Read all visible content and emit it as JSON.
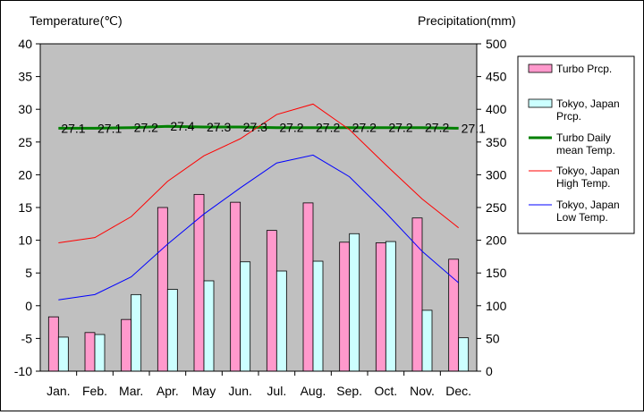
{
  "chart_data": {
    "type": "bar",
    "categories": [
      "Jan.",
      "Feb.",
      "Mar.",
      "Apr.",
      "May",
      "Jun.",
      "Jul.",
      "Aug.",
      "Sep.",
      "Oct.",
      "Nov.",
      "Dec."
    ],
    "y_left": {
      "label": "Temperature(℃)",
      "ylim": [
        -10,
        40
      ],
      "ticks": [
        "-10",
        "-5",
        "0",
        "5",
        "10",
        "15",
        "20",
        "25",
        "30",
        "35",
        "40"
      ]
    },
    "y_right": {
      "label": "Precipitation(mm)",
      "ylim": [
        0,
        500
      ],
      "ticks": [
        "0",
        "50",
        "100",
        "150",
        "200",
        "250",
        "300",
        "350",
        "400",
        "450",
        "500"
      ]
    },
    "series": [
      {
        "name": "Turbo Prcp.",
        "type": "bar",
        "axis": "right",
        "color": "#ff99cc",
        "values": [
          83,
          59,
          79,
          250,
          270,
          258,
          215,
          257,
          197,
          196,
          234,
          171
        ]
      },
      {
        "name": "Tokyo, Japan Prcp.",
        "type": "bar",
        "axis": "right",
        "color": "#ccffff",
        "values": [
          52,
          56,
          117,
          125,
          138,
          167,
          153,
          168,
          210,
          198,
          93,
          51
        ]
      },
      {
        "name": "Turbo Daily mean Temp.",
        "type": "line",
        "axis": "left",
        "color": "#008000",
        "values": [
          27.1,
          27.1,
          27.2,
          27.4,
          27.3,
          27.3,
          27.2,
          27.2,
          27.2,
          27.2,
          27.2,
          27.1
        ],
        "labels": [
          "27.1",
          "27.1",
          "27.2",
          "27.4",
          "27.3",
          "27.3",
          "27.2",
          "27.2",
          "27.2",
          "27.2",
          "27.2",
          "27.1"
        ]
      },
      {
        "name": "Tokyo, Japan High Temp.",
        "type": "line",
        "axis": "left",
        "color": "#ff0000",
        "values": [
          9.6,
          10.4,
          13.6,
          19.0,
          22.9,
          25.5,
          29.2,
          30.8,
          26.9,
          21.5,
          16.3,
          11.9
        ]
      },
      {
        "name": "Tokyo, Japan Low Temp.",
        "type": "line",
        "axis": "left",
        "color": "#0000ff",
        "values": [
          0.9,
          1.7,
          4.4,
          9.4,
          14.0,
          18.0,
          21.8,
          23.0,
          19.7,
          14.2,
          8.3,
          3.5
        ]
      }
    ],
    "grid": false,
    "background_color": "#c0c0c0",
    "legend_position": "right"
  },
  "legend": {
    "items": [
      {
        "kind": "bar",
        "color": "#ff99cc",
        "lines": [
          "Turbo Prcp."
        ]
      },
      {
        "kind": "bar",
        "color": "#ccffff",
        "lines": [
          "Tokyo, Japan",
          "Prcp."
        ]
      },
      {
        "kind": "line",
        "color": "#008000",
        "lines": [
          "Turbo Daily",
          "mean Temp."
        ]
      },
      {
        "kind": "line",
        "color": "#ff0000",
        "lines": [
          "Tokyo, Japan",
          "High Temp."
        ]
      },
      {
        "kind": "line",
        "color": "#0000ff",
        "lines": [
          "Tokyo, Japan",
          "Low Temp."
        ]
      }
    ]
  }
}
